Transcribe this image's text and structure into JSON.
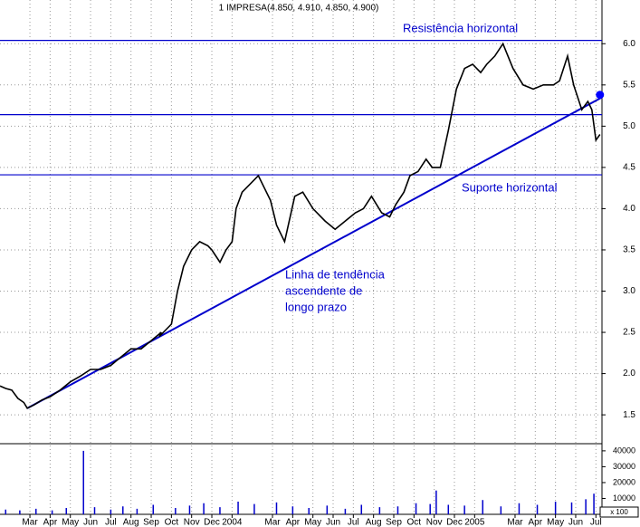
{
  "chart_data": {
    "type": "line",
    "title": "1 IMPRESA(4.850, 4.910, 4.850, 4.900)",
    "xlim": [
      -1.48,
      28.3
    ],
    "xticks": [
      {
        "value": 0,
        "label": "Mar"
      },
      {
        "value": 1,
        "label": "Apr"
      },
      {
        "value": 2,
        "label": "May"
      },
      {
        "value": 3,
        "label": "Jun"
      },
      {
        "value": 4,
        "label": "Jul"
      },
      {
        "value": 5,
        "label": "Aug"
      },
      {
        "value": 6,
        "label": "Sep"
      },
      {
        "value": 7,
        "label": "Oct"
      },
      {
        "value": 8,
        "label": "Nov"
      },
      {
        "value": 9,
        "label": "Dec"
      },
      {
        "value": 10,
        "label": "2004"
      },
      {
        "value": 12,
        "label": "Mar"
      },
      {
        "value": 13,
        "label": "Apr"
      },
      {
        "value": 14,
        "label": "May"
      },
      {
        "value": 15,
        "label": "Jun"
      },
      {
        "value": 16,
        "label": "Jul"
      },
      {
        "value": 17,
        "label": "Aug"
      },
      {
        "value": 18,
        "label": "Sep"
      },
      {
        "value": 19,
        "label": "Oct"
      },
      {
        "value": 20,
        "label": "Nov"
      },
      {
        "value": 21,
        "label": "Dec"
      },
      {
        "value": 22,
        "label": "2005"
      },
      {
        "value": 24,
        "label": "Mar"
      },
      {
        "value": 25,
        "label": "Apr"
      },
      {
        "value": 26,
        "label": "May"
      },
      {
        "value": 27,
        "label": "Jun"
      },
      {
        "value": 28,
        "label": "Jul"
      }
    ],
    "ylim": [
      1.15,
      6.53
    ],
    "yticks": [
      {
        "value": 1.5,
        "label": "1.5"
      },
      {
        "value": 2,
        "label": "2.0"
      },
      {
        "value": 2.5,
        "label": "2.5"
      },
      {
        "value": 3,
        "label": "3.0"
      },
      {
        "value": 3.5,
        "label": "3.5"
      },
      {
        "value": 4,
        "label": "4.0"
      },
      {
        "value": 4.5,
        "label": "4.5"
      },
      {
        "value": 5,
        "label": "5.0"
      },
      {
        "value": 5.5,
        "label": "5.5"
      },
      {
        "value": 6,
        "label": "6.0"
      }
    ],
    "grid": true,
    "series": [
      {
        "name": "IMPRESA",
        "color": "#000000",
        "x": [
          -1.48,
          -1.2,
          -0.9,
          -0.6,
          -0.3,
          -0.13,
          0.2,
          0.6,
          1,
          1.5,
          2,
          2.5,
          3,
          3.5,
          4,
          4.5,
          5,
          5.5,
          6,
          6.5,
          6.4,
          6.8,
          7,
          7.3,
          7.6,
          8,
          8.4,
          8.8,
          9,
          9.4,
          9.7,
          10,
          10.2,
          10.5,
          10.9,
          11.3,
          11.6,
          11.9,
          12.2,
          12.6,
          13.1,
          13.5,
          14,
          14.6,
          15.1,
          15.6,
          16.1,
          16.5,
          16.9,
          17.4,
          17.8,
          18.1,
          18.5,
          18.8,
          19.2,
          19.6,
          19.9,
          20.3,
          20.7,
          21.1,
          21.5,
          21.9,
          22.3,
          22.6,
          23,
          23.4,
          23.9,
          24.4,
          24.9,
          25.4,
          25.9,
          26.2,
          26.6,
          26.9,
          27.3,
          27.6,
          27.8,
          28,
          28.2
        ],
        "values": [
          1.85,
          1.82,
          1.8,
          1.7,
          1.65,
          1.58,
          1.62,
          1.68,
          1.72,
          1.8,
          1.9,
          1.97,
          2.05,
          2.05,
          2.1,
          2.2,
          2.3,
          2.3,
          2.4,
          2.5,
          2.45,
          2.55,
          2.6,
          3.0,
          3.3,
          3.5,
          3.6,
          3.55,
          3.5,
          3.35,
          3.5,
          3.6,
          4.0,
          4.2,
          4.3,
          4.4,
          4.25,
          4.1,
          3.8,
          3.6,
          4.15,
          4.2,
          4.0,
          3.85,
          3.75,
          3.85,
          3.95,
          4.0,
          4.15,
          3.95,
          3.9,
          4.05,
          4.2,
          4.4,
          4.45,
          4.6,
          4.5,
          4.5,
          4.95,
          5.45,
          5.7,
          5.75,
          5.65,
          5.75,
          5.85,
          6.0,
          5.7,
          5.5,
          5.45,
          5.5,
          5.5,
          5.55,
          5.85,
          5.5,
          5.2,
          5.3,
          5.2,
          4.83,
          4.9
        ]
      }
    ],
    "marker": {
      "x": 28.2,
      "value": 5.38,
      "color": "#0000ff"
    },
    "horizontal_lines": [
      6.04,
      5.14,
      4.41
    ],
    "trendline": {
      "x": [
        -0.13,
        28.3
      ],
      "values": [
        1.58,
        5.35
      ]
    },
    "line_color": "#0000cc",
    "annotations": [
      "Resistência horizontal",
      "Suporte horizontal",
      "Linha de tendência",
      "ascendente de",
      "longo prazo"
    ],
    "volume": {
      "y2lim": [
        0,
        44500
      ],
      "y2ticks": [
        10000,
        20000,
        30000,
        40000
      ],
      "unit_label": "x 100",
      "color": "#0000cc",
      "x": [
        -1.2,
        -0.5,
        0.3,
        1.1,
        1.8,
        2.65,
        3.2,
        4,
        4.6,
        5.3,
        6.1,
        7.2,
        7.9,
        8.6,
        9.4,
        10.3,
        11.1,
        12.2,
        13,
        13.8,
        14.7,
        15.6,
        16.4,
        17.3,
        18.2,
        19.1,
        19.8,
        20.1,
        20.7,
        21.5,
        22.4,
        23.3,
        24.2,
        25.1,
        26,
        26.8,
        27.5,
        27.9
      ],
      "values": [
        3000,
        2500,
        3500,
        2500,
        4000,
        40000,
        4500,
        3000,
        5000,
        3500,
        6000,
        4000,
        5500,
        7000,
        4500,
        8000,
        6500,
        7500,
        5000,
        4000,
        5500,
        3500,
        6000,
        4500,
        5000,
        7000,
        6500,
        15000,
        6000,
        5500,
        9000,
        5000,
        7000,
        6000,
        8000,
        7500,
        9500,
        13000
      ]
    }
  }
}
